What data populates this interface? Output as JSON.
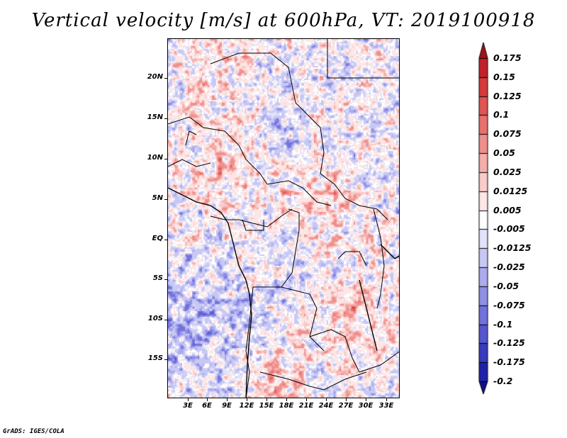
{
  "title": "Vertical velocity [m/s] at 600hPa, VT: 2019100918",
  "credit": "GrADS: IGES/COLA",
  "latitude_labels": [
    "20N",
    "15N",
    "10N",
    "5N",
    "EQ",
    "5S",
    "10S",
    "15S"
  ],
  "longitude_labels": [
    "3E",
    "6E",
    "9E",
    "12E",
    "15E",
    "18E",
    "21E",
    "24E",
    "27E",
    "30E",
    "33E"
  ],
  "colorbar": {
    "labels": [
      "0.175",
      "0.15",
      "0.125",
      "0.1",
      "0.075",
      "0.05",
      "0.025",
      "0.0125",
      "0.005",
      "-0.005",
      "-0.0125",
      "-0.025",
      "-0.05",
      "-0.075",
      "-0.1",
      "-0.125",
      "-0.175",
      "-0.2"
    ],
    "colors": [
      "#a50f15",
      "#c1222a",
      "#d73a3a",
      "#e05555",
      "#e8716e",
      "#ef8f8c",
      "#f5aeab",
      "#f9cccb",
      "#fce6e6",
      "#ffffff",
      "#e2e2fa",
      "#c8c8f4",
      "#ababee",
      "#8f8fe6",
      "#7272dc",
      "#5656cf",
      "#3a3abf",
      "#2020a8",
      "#10108a"
    ]
  }
}
